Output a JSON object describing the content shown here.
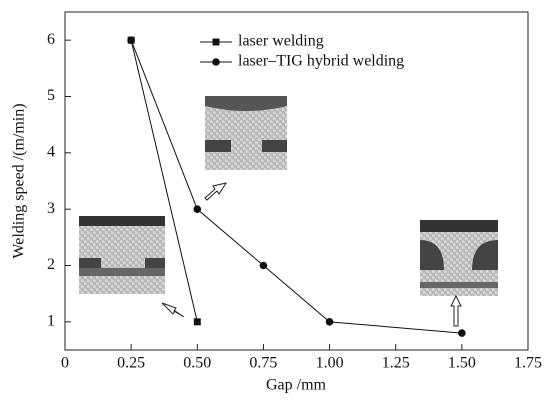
{
  "chart_data": {
    "type": "line",
    "x_label": "Gap /mm",
    "y_label": "Welding speed /(m/min)",
    "xlim": [
      0,
      1.75
    ],
    "ylim": [
      0.5,
      6.5
    ],
    "xticks": [
      0,
      0.25,
      {
        "value": 0.5,
        "label": "0.50"
      },
      0.75,
      {
        "value": 1,
        "label": "1.00"
      },
      1.25,
      {
        "value": 1.5,
        "label": "1.50"
      },
      1.75
    ],
    "yticks": [
      1,
      2,
      3,
      4,
      5,
      6
    ],
    "series": [
      {
        "name": "laser welding",
        "color": "#111111",
        "marker": "square",
        "x": [
          0.25,
          0.5
        ],
        "values": [
          6,
          1
        ]
      },
      {
        "name": "laser–TIG hybrid welding",
        "color": "#111111",
        "marker": "circle",
        "x": [
          0.25,
          0.5,
          0.75,
          1,
          1.5
        ],
        "values": [
          6,
          3,
          2,
          1,
          0.8
        ]
      }
    ]
  }
}
